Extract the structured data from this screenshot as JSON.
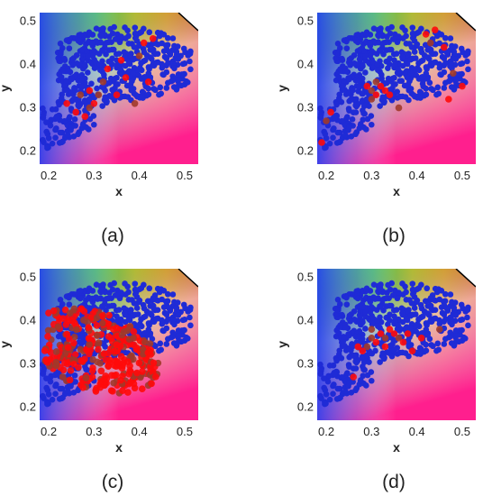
{
  "colors": {
    "blue_points": "#1f2bd6",
    "red_points": "#ff0a0a",
    "dark_red_points": "#a03a2a"
  },
  "chart_data": [
    {
      "type": "scatter",
      "panel_label": "(a)",
      "xlabel": "x",
      "ylabel": "y",
      "xlim": [
        0.18,
        0.53
      ],
      "ylim": [
        0.17,
        0.52
      ],
      "xticks": [
        "0.2",
        "0.3",
        "0.4",
        "0.5"
      ],
      "yticks": [
        "0.2",
        "0.3",
        "0.4",
        "0.5"
      ],
      "background": "CIE chromaticity color gamut",
      "highlighted_points": [
        [
          0.27,
          0.33
        ],
        [
          0.29,
          0.34
        ],
        [
          0.3,
          0.31
        ],
        [
          0.31,
          0.33
        ],
        [
          0.26,
          0.29
        ],
        [
          0.28,
          0.28
        ],
        [
          0.32,
          0.36
        ],
        [
          0.35,
          0.33
        ],
        [
          0.37,
          0.37
        ],
        [
          0.4,
          0.42
        ],
        [
          0.41,
          0.45
        ],
        [
          0.43,
          0.46
        ],
        [
          0.39,
          0.31
        ],
        [
          0.33,
          0.39
        ],
        [
          0.24,
          0.31
        ],
        [
          0.29,
          0.3
        ],
        [
          0.36,
          0.41
        ],
        [
          0.42,
          0.36
        ]
      ]
    },
    {
      "type": "scatter",
      "panel_label": "(b)",
      "xlabel": "x",
      "ylabel": "y",
      "xlim": [
        0.18,
        0.53
      ],
      "ylim": [
        0.17,
        0.52
      ],
      "xticks": [
        "0.2",
        "0.3",
        "0.4",
        "0.5"
      ],
      "yticks": [
        "0.2",
        "0.3",
        "0.4",
        "0.5"
      ],
      "background": "CIE chromaticity color gamut",
      "highlighted_points": [
        [
          0.3,
          0.34
        ],
        [
          0.31,
          0.33
        ],
        [
          0.32,
          0.35
        ],
        [
          0.3,
          0.32
        ],
        [
          0.33,
          0.34
        ],
        [
          0.29,
          0.35
        ],
        [
          0.31,
          0.36
        ],
        [
          0.34,
          0.33
        ],
        [
          0.19,
          0.22
        ],
        [
          0.2,
          0.27
        ],
        [
          0.21,
          0.29
        ],
        [
          0.42,
          0.47
        ],
        [
          0.43,
          0.45
        ],
        [
          0.44,
          0.48
        ],
        [
          0.46,
          0.44
        ],
        [
          0.48,
          0.38
        ],
        [
          0.5,
          0.35
        ],
        [
          0.47,
          0.32
        ],
        [
          0.36,
          0.3
        ]
      ]
    },
    {
      "type": "scatter",
      "panel_label": "(c)",
      "xlabel": "x",
      "ylabel": "y",
      "xlim": [
        0.18,
        0.53
      ],
      "ylim": [
        0.17,
        0.52
      ],
      "xticks": [
        "0.2",
        "0.3",
        "0.4",
        "0.5"
      ],
      "yticks": [
        "0.2",
        "0.3",
        "0.4",
        "0.5"
      ],
      "background": "CIE chromaticity color gamut",
      "highlighted_region": {
        "x": [
          0.19,
          0.45
        ],
        "y": [
          0.21,
          0.48
        ],
        "center": [
          0.3,
          0.33
        ]
      }
    },
    {
      "type": "scatter",
      "panel_label": "(d)",
      "xlabel": "x",
      "ylabel": "y",
      "xlim": [
        0.18,
        0.53
      ],
      "ylim": [
        0.17,
        0.52
      ],
      "xticks": [
        "0.2",
        "0.3",
        "0.4",
        "0.5"
      ],
      "yticks": [
        "0.2",
        "0.3",
        "0.4",
        "0.5"
      ],
      "background": "CIE chromaticity color gamut",
      "highlighted_points": [
        [
          0.3,
          0.36
        ],
        [
          0.31,
          0.35
        ],
        [
          0.32,
          0.37
        ],
        [
          0.33,
          0.36
        ],
        [
          0.34,
          0.38
        ],
        [
          0.35,
          0.37
        ],
        [
          0.36,
          0.36
        ],
        [
          0.37,
          0.35
        ],
        [
          0.38,
          0.37
        ],
        [
          0.29,
          0.34
        ],
        [
          0.28,
          0.33
        ],
        [
          0.27,
          0.34
        ],
        [
          0.3,
          0.38
        ],
        [
          0.26,
          0.27
        ],
        [
          0.39,
          0.33
        ],
        [
          0.45,
          0.38
        ],
        [
          0.41,
          0.36
        ],
        [
          0.33,
          0.34
        ]
      ]
    }
  ]
}
